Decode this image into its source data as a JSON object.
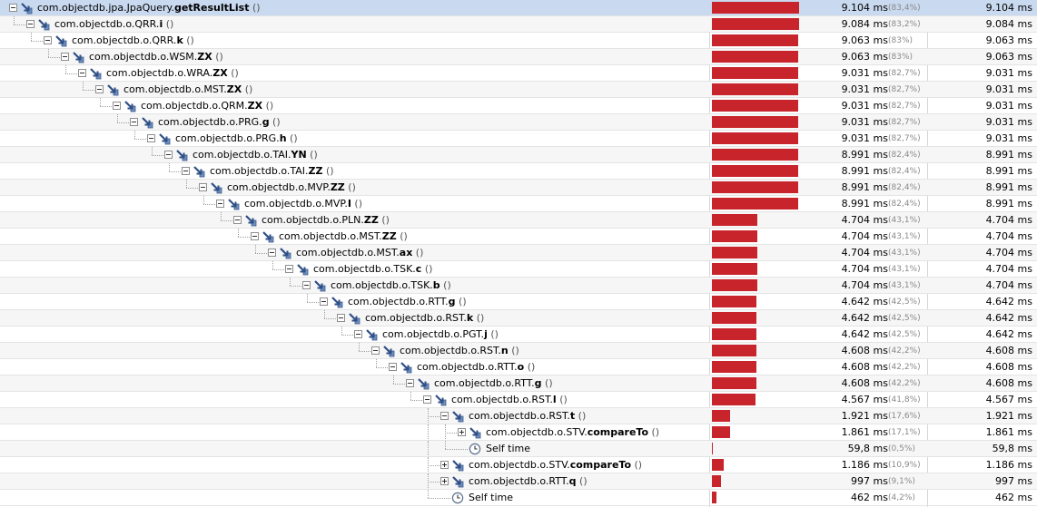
{
  "colors": {
    "bar": "#c8242c",
    "selection": "#c9d9ef"
  },
  "rows": [
    {
      "depth": 0,
      "toggle": "minus",
      "icon": "method-icon",
      "prefix": "com.objectdb.jpa.JpaQuery.",
      "method": "getResultList",
      "paren": " ()",
      "time": "9.104 ms",
      "pct": "(83,4%)",
      "total": "9.104 ms",
      "fraction": 0.834
    },
    {
      "depth": 1,
      "toggle": "minus",
      "icon": "method-icon",
      "prefix": "com.objectdb.o.QRR.",
      "method": "i",
      "paren": " ()",
      "time": "9.084 ms",
      "pct": "(83,2%)",
      "total": "9.084 ms",
      "fraction": 0.832
    },
    {
      "depth": 2,
      "toggle": "minus",
      "icon": "method-icon",
      "prefix": "com.objectdb.o.QRR.",
      "method": "k",
      "paren": " ()",
      "time": "9.063 ms",
      "pct": "(83%)",
      "total": "9.063 ms",
      "fraction": 0.83
    },
    {
      "depth": 3,
      "toggle": "minus",
      "icon": "method-icon",
      "prefix": "com.objectdb.o.WSM.",
      "method": "ZX",
      "paren": " ()",
      "time": "9.063 ms",
      "pct": "(83%)",
      "total": "9.063 ms",
      "fraction": 0.83
    },
    {
      "depth": 4,
      "toggle": "minus",
      "icon": "method-icon",
      "prefix": "com.objectdb.o.WRA.",
      "method": "ZX",
      "paren": " ()",
      "time": "9.031 ms",
      "pct": "(82,7%)",
      "total": "9.031 ms",
      "fraction": 0.827
    },
    {
      "depth": 5,
      "toggle": "minus",
      "icon": "method-icon",
      "prefix": "com.objectdb.o.MST.",
      "method": "ZX",
      "paren": " ()",
      "time": "9.031 ms",
      "pct": "(82,7%)",
      "total": "9.031 ms",
      "fraction": 0.827
    },
    {
      "depth": 6,
      "toggle": "minus",
      "icon": "method-icon",
      "prefix": "com.objectdb.o.QRM.",
      "method": "ZX",
      "paren": " ()",
      "time": "9.031 ms",
      "pct": "(82,7%)",
      "total": "9.031 ms",
      "fraction": 0.827
    },
    {
      "depth": 7,
      "toggle": "minus",
      "icon": "method-icon",
      "prefix": "com.objectdb.o.PRG.",
      "method": "g",
      "paren": " ()",
      "time": "9.031 ms",
      "pct": "(82,7%)",
      "total": "9.031 ms",
      "fraction": 0.827
    },
    {
      "depth": 8,
      "toggle": "minus",
      "icon": "method-icon",
      "prefix": "com.objectdb.o.PRG.",
      "method": "h",
      "paren": " ()",
      "time": "9.031 ms",
      "pct": "(82,7%)",
      "total": "9.031 ms",
      "fraction": 0.827
    },
    {
      "depth": 9,
      "toggle": "minus",
      "icon": "method-icon",
      "prefix": "com.objectdb.o.TAI.",
      "method": "YN",
      "paren": " ()",
      "time": "8.991 ms",
      "pct": "(82,4%)",
      "total": "8.991 ms",
      "fraction": 0.824
    },
    {
      "depth": 10,
      "toggle": "minus",
      "icon": "method-icon",
      "prefix": "com.objectdb.o.TAI.",
      "method": "ZZ",
      "paren": " ()",
      "time": "8.991 ms",
      "pct": "(82,4%)",
      "total": "8.991 ms",
      "fraction": 0.824
    },
    {
      "depth": 11,
      "toggle": "minus",
      "icon": "method-icon",
      "prefix": "com.objectdb.o.MVP.",
      "method": "ZZ",
      "paren": " ()",
      "time": "8.991 ms",
      "pct": "(82,4%)",
      "total": "8.991 ms",
      "fraction": 0.824
    },
    {
      "depth": 12,
      "toggle": "minus",
      "icon": "method-icon",
      "prefix": "com.objectdb.o.MVP.",
      "method": "I",
      "paren": " ()",
      "time": "8.991 ms",
      "pct": "(82,4%)",
      "total": "8.991 ms",
      "fraction": 0.824
    },
    {
      "depth": 13,
      "toggle": "minus",
      "icon": "method-icon",
      "prefix": "com.objectdb.o.PLN.",
      "method": "ZZ",
      "paren": " ()",
      "time": "4.704 ms",
      "pct": "(43,1%)",
      "total": "4.704 ms",
      "fraction": 0.431
    },
    {
      "depth": 14,
      "toggle": "minus",
      "icon": "method-icon",
      "prefix": "com.objectdb.o.MST.",
      "method": "ZZ",
      "paren": " ()",
      "time": "4.704 ms",
      "pct": "(43,1%)",
      "total": "4.704 ms",
      "fraction": 0.431
    },
    {
      "depth": 15,
      "toggle": "minus",
      "icon": "method-icon",
      "prefix": "com.objectdb.o.MST.",
      "method": "ax",
      "paren": " ()",
      "time": "4.704 ms",
      "pct": "(43,1%)",
      "total": "4.704 ms",
      "fraction": 0.431
    },
    {
      "depth": 16,
      "toggle": "minus",
      "icon": "method-icon",
      "prefix": "com.objectdb.o.TSK.",
      "method": "c",
      "paren": " ()",
      "time": "4.704 ms",
      "pct": "(43,1%)",
      "total": "4.704 ms",
      "fraction": 0.431
    },
    {
      "depth": 17,
      "toggle": "minus",
      "icon": "method-icon",
      "prefix": "com.objectdb.o.TSK.",
      "method": "b",
      "paren": " ()",
      "time": "4.704 ms",
      "pct": "(43,1%)",
      "total": "4.704 ms",
      "fraction": 0.431
    },
    {
      "depth": 18,
      "toggle": "minus",
      "icon": "method-icon",
      "prefix": "com.objectdb.o.RTT.",
      "method": "g",
      "paren": " ()",
      "time": "4.642 ms",
      "pct": "(42,5%)",
      "total": "4.642 ms",
      "fraction": 0.425
    },
    {
      "depth": 19,
      "toggle": "minus",
      "icon": "method-icon",
      "prefix": "com.objectdb.o.RST.",
      "method": "k",
      "paren": " ()",
      "time": "4.642 ms",
      "pct": "(42,5%)",
      "total": "4.642 ms",
      "fraction": 0.425
    },
    {
      "depth": 20,
      "toggle": "minus",
      "icon": "method-icon",
      "prefix": "com.objectdb.o.PGT.",
      "method": "j",
      "paren": " ()",
      "time": "4.642 ms",
      "pct": "(42,5%)",
      "total": "4.642 ms",
      "fraction": 0.425
    },
    {
      "depth": 21,
      "toggle": "minus",
      "icon": "method-icon",
      "prefix": "com.objectdb.o.RST.",
      "method": "n",
      "paren": " ()",
      "time": "4.608 ms",
      "pct": "(42,2%)",
      "total": "4.608 ms",
      "fraction": 0.422
    },
    {
      "depth": 22,
      "toggle": "minus",
      "icon": "method-icon",
      "prefix": "com.objectdb.o.RTT.",
      "method": "o",
      "paren": " ()",
      "time": "4.608 ms",
      "pct": "(42,2%)",
      "total": "4.608 ms",
      "fraction": 0.422
    },
    {
      "depth": 23,
      "toggle": "minus",
      "icon": "method-icon",
      "prefix": "com.objectdb.o.RTT.",
      "method": "g",
      "paren": " ()",
      "time": "4.608 ms",
      "pct": "(42,2%)",
      "total": "4.608 ms",
      "fraction": 0.422
    },
    {
      "depth": 24,
      "toggle": "minus",
      "icon": "method-icon",
      "prefix": "com.objectdb.o.RST.",
      "method": "l",
      "paren": " ()",
      "time": "4.567 ms",
      "pct": "(41,8%)",
      "total": "4.567 ms",
      "fraction": 0.418
    },
    {
      "depth": 25,
      "toggle": "minus",
      "icon": "method-icon",
      "prefix": "com.objectdb.o.RST.",
      "method": "t",
      "paren": " ()",
      "time": "1.921 ms",
      "pct": "(17,6%)",
      "total": "1.921 ms",
      "fraction": 0.176
    },
    {
      "depth": 26,
      "toggle": "plus",
      "icon": "method-icon",
      "prefix": "com.objectdb.o.STV.",
      "method": "compareTo",
      "paren": " ()",
      "time": "1.861 ms",
      "pct": "(17,1%)",
      "total": "1.861 ms",
      "fraction": 0.171
    },
    {
      "depth": 26,
      "toggle": "none",
      "icon": "clock-icon",
      "prefix": "Self time",
      "method": "",
      "paren": "",
      "time": "59,8 ms",
      "pct": "(0,5%)",
      "total": "59,8 ms",
      "fraction": 0.005
    },
    {
      "depth": 25,
      "toggle": "plus",
      "icon": "method-icon",
      "prefix": "com.objectdb.o.STV.",
      "method": "compareTo",
      "paren": " ()",
      "time": "1.186 ms",
      "pct": "(10,9%)",
      "total": "1.186 ms",
      "fraction": 0.109
    },
    {
      "depth": 25,
      "toggle": "plus",
      "icon": "method-icon",
      "prefix": "com.objectdb.o.RTT.",
      "method": "q",
      "paren": " ()",
      "time": "997 ms",
      "pct": "(9,1%)",
      "total": "997 ms",
      "fraction": 0.091
    },
    {
      "depth": 25,
      "toggle": "none",
      "icon": "clock-icon",
      "prefix": "Self time",
      "method": "",
      "paren": "",
      "time": "462 ms",
      "pct": "(4,2%)",
      "total": "462 ms",
      "fraction": 0.042
    }
  ]
}
